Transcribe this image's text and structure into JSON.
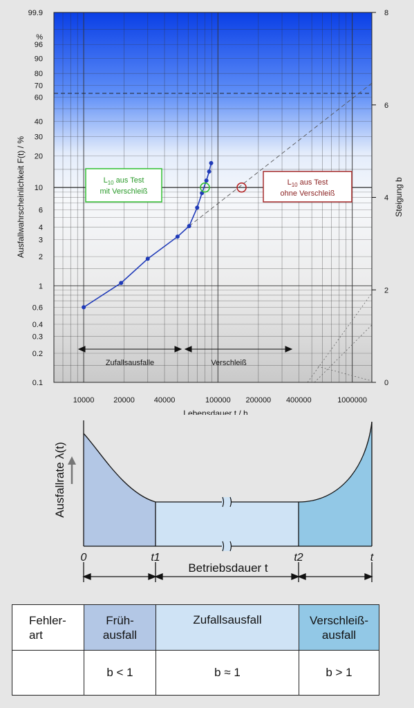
{
  "weibull": {
    "y_axis_label": "Ausfallwahrscheinlichkeit F(t) / %",
    "y_axis_percent_mark": "%",
    "y_ticks": [
      "0.1",
      "0.2",
      "0.3",
      "0.4",
      "0.6",
      "1",
      "2",
      "3",
      "4",
      "6",
      "10",
      "20",
      "30",
      "40",
      "60",
      "70",
      "80",
      "90",
      "96",
      "99.9"
    ],
    "x_axis_label": "Lebensdauer t /  h",
    "x_ticks": [
      "10000",
      "20000",
      "40000",
      "100000",
      "200000",
      "400000",
      "1000000"
    ],
    "right_axis_label": "Steigung b",
    "right_ticks": [
      "0",
      "2",
      "4",
      "6",
      "8"
    ],
    "annotation_test_with_wear_line1": "L",
    "annotation_test_with_wear_sub": "10",
    "annotation_test_with_wear_line1_rest": " aus Test",
    "annotation_test_with_wear_line2": "mit Verschleiß",
    "annotation_test_without_wear_line1": "L",
    "annotation_test_without_wear_sub": "10",
    "annotation_test_without_wear_line1_rest": " aus Test",
    "annotation_test_without_wear_line2": "ohne Verschleiß",
    "region_random": "Zufallsausfalle",
    "region_wear": "Verschleiß",
    "colors": {
      "series": "#1f3ab8",
      "green_marker": "#2fbf2f",
      "red_marker": "#b52222",
      "green_box": "#2fbf2f",
      "red_box": "#a52a2a"
    }
  },
  "chart_data": [
    {
      "type": "scatter",
      "x_scale": "log",
      "y_scale": "weibull",
      "xlim": [
        6000,
        1400000
      ],
      "ylim": [
        0.1,
        99.9
      ],
      "xlabel": "Lebensdauer t /  h",
      "ylabel": "Ausfallwahrscheinlichkeit F(t) / %",
      "series": [
        {
          "x": [
            10000,
            19000,
            30000,
            50000,
            61000,
            70000,
            76000,
            82000,
            86000,
            89000
          ],
          "y": [
            0.6,
            1.07,
            1.9,
            3.2,
            4.1,
            6.3,
            8.8,
            11.7,
            14.3,
            17.2
          ]
        }
      ],
      "extrapolation": {
        "x": [
          61000,
          1400000
        ],
        "y": [
          4.1,
          72
        ]
      },
      "markers": [
        {
          "x": 80000,
          "y": 10,
          "color": "green"
        },
        {
          "x": 150000,
          "y": 10,
          "color": "red"
        }
      ],
      "reference_lines_y": [
        10,
        63.2
      ],
      "right_axis": {
        "label": "Steigung b",
        "range": [
          0,
          8
        ]
      }
    },
    {
      "type": "area",
      "ylabel": "Ausfallrate λ(t)",
      "xlabel": "Betriebsdauer t",
      "x_ticks": [
        "0",
        "t1",
        "t2",
        "t"
      ],
      "segments": [
        "Frühausfall",
        "Zufallsausfall",
        "Verschleißausfall"
      ]
    }
  ],
  "bathtub": {
    "y_axis_label": "Ausfallrate λ(t)",
    "x_axis_label": "Betriebsdauer t",
    "tick_0": "0",
    "tick_t1": "t1",
    "tick_t2": "t2",
    "tick_t": "t",
    "colors": {
      "early": "#b3c7e5",
      "random": "#cfe3f5",
      "wear": "#92c8e6"
    }
  },
  "table": {
    "header_label_line1": "Fehler-",
    "header_label_line2": "art",
    "early_line1": "Früh-",
    "early_line2": "ausfall",
    "random": "Zufallsausfall",
    "wear_line1": "Verschleiß-",
    "wear_line2": "ausfall",
    "b_early": "b  <  1",
    "b_random": "b  ≈  1",
    "b_wear": "b  >  1"
  }
}
